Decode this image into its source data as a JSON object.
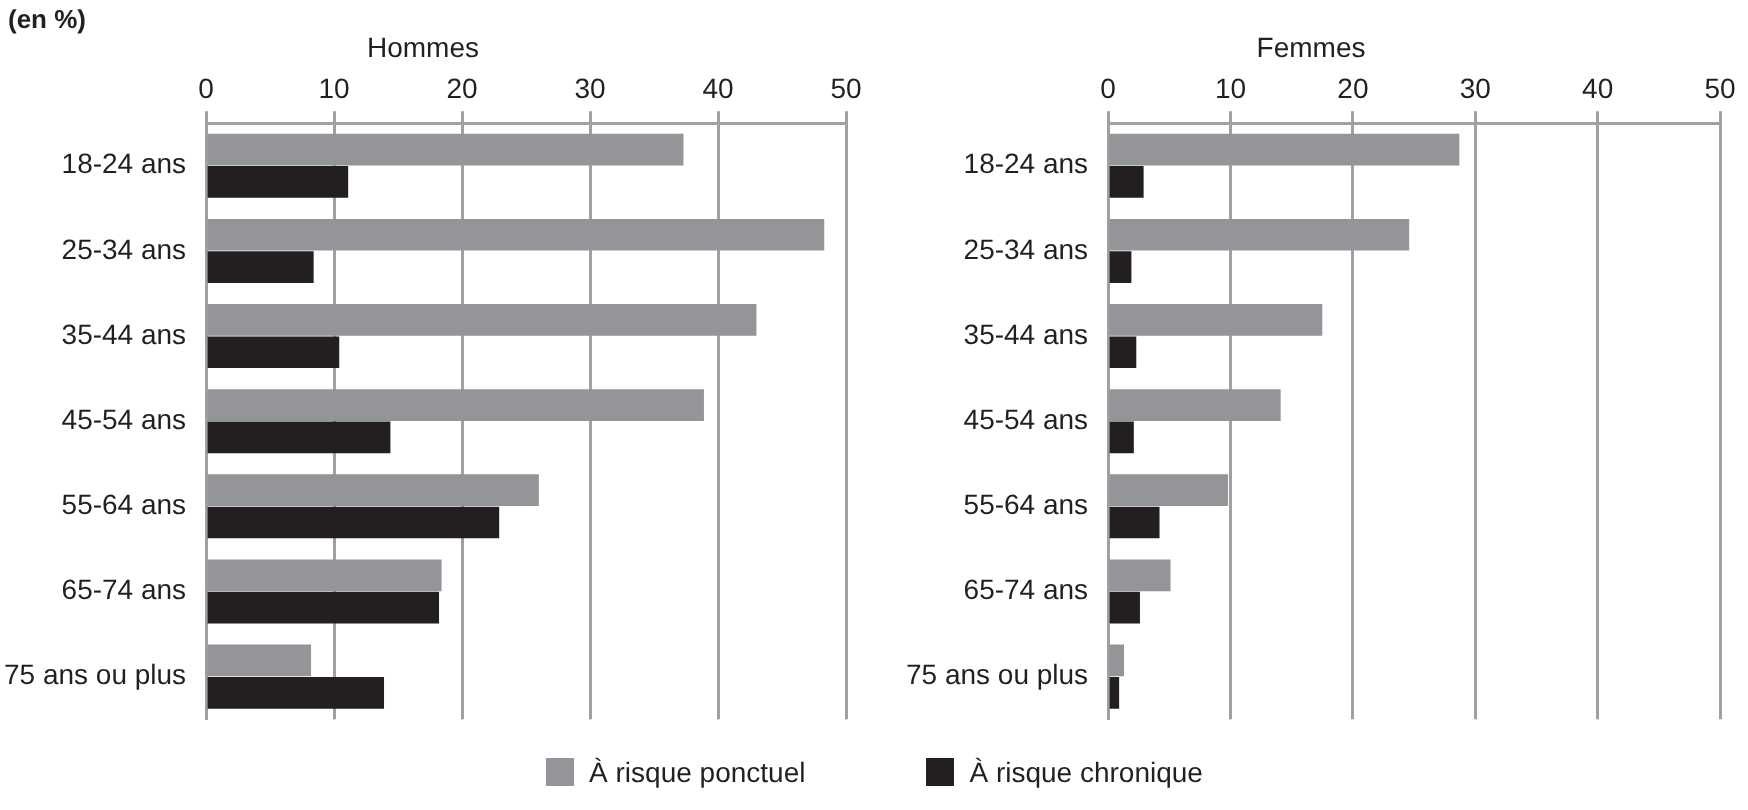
{
  "chart_data": [
    {
      "type": "bar",
      "orientation": "horizontal",
      "title": "Hommes",
      "annotations": [
        "(en %)"
      ],
      "categories": [
        "18-24 ans",
        "25-34 ans",
        "35-44 ans",
        "45-54 ans",
        "55-64 ans",
        "65-74 ans",
        "75 ans ou plus"
      ],
      "series": [
        {
          "name": "À risque ponctuel",
          "color": "#939598",
          "values": [
            37.3,
            48.3,
            43.0,
            38.9,
            26.0,
            18.4,
            8.2
          ]
        },
        {
          "name": "À risque chronique",
          "color": "#231f20",
          "values": [
            11.1,
            8.4,
            10.4,
            14.4,
            22.9,
            18.2,
            13.9
          ]
        }
      ],
      "xlim": [
        0,
        50
      ],
      "xticks": [
        0,
        10,
        20,
        30,
        40,
        50
      ],
      "grid": "x",
      "legend": "bottom"
    },
    {
      "type": "bar",
      "orientation": "horizontal",
      "title": "Femmes",
      "categories": [
        "18-24 ans",
        "25-34 ans",
        "35-44 ans",
        "45-54 ans",
        "55-64 ans",
        "65-74 ans",
        "75 ans ou plus"
      ],
      "series": [
        {
          "color": "#939598",
          "values": [
            28.7,
            24.6,
            17.5,
            14.1,
            9.8,
            5.1,
            1.3
          ]
        },
        {
          "color": "#231f20",
          "values": [
            2.9,
            1.9,
            2.3,
            2.1,
            4.2,
            2.6,
            0.9
          ]
        }
      ],
      "xlim": [
        0,
        50
      ],
      "xticks": [
        0,
        10,
        20,
        30,
        40,
        50
      ],
      "grid": "x"
    }
  ]
}
